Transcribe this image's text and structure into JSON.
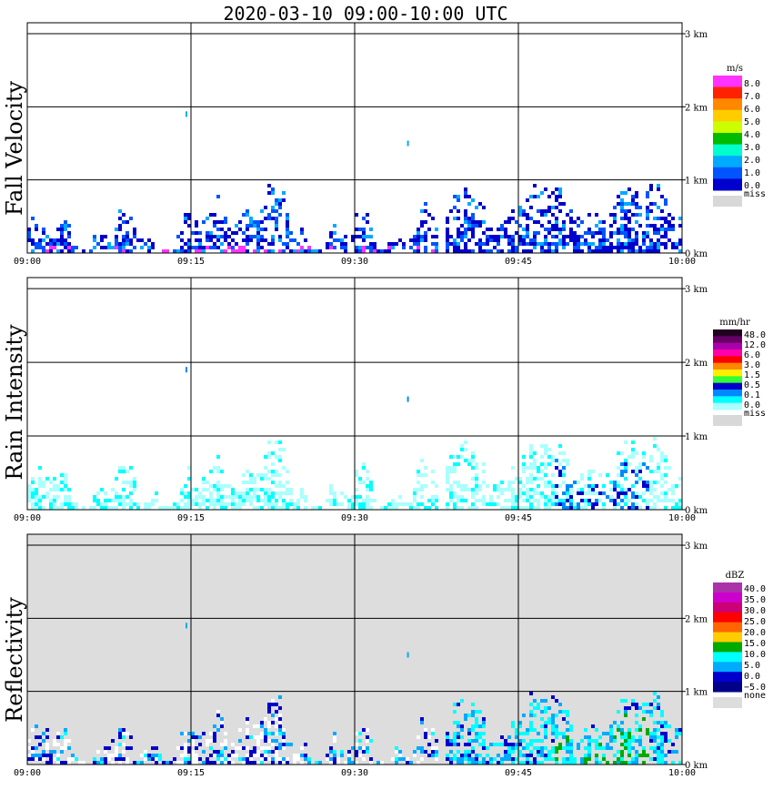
{
  "title": "2020-03-10   09:00-10:00 UTC",
  "chart_data": [
    {
      "type": "heatmap",
      "title": "Fall Velocity",
      "xlabel": "",
      "ylabel": "",
      "x_ticks": [
        "09:00",
        "09:15",
        "09:30",
        "09:45",
        "10:00"
      ],
      "y_ticks": [
        "0 km",
        "1 km",
        "2 km",
        "3 km"
      ],
      "xlim": [
        "09:00",
        "10:00"
      ],
      "ylim_km": [
        0,
        3
      ],
      "grid": true,
      "background": "#ffffff",
      "colorbar": {
        "unit": "m/s",
        "labels": [
          "8.0",
          "7.0",
          "6.0",
          "5.0",
          "4.0",
          "3.0",
          "2.0",
          "1.0",
          "0.0"
        ],
        "colors": [
          "#ff33ff",
          "#ff2200",
          "#ff8800",
          "#ffcc00",
          "#ccff00",
          "#00bb00",
          "#00ffcc",
          "#00aaff",
          "#0055ff",
          "#0000cc"
        ],
        "missing_label": "miss",
        "missing_color": "#d8d8d8"
      }
    },
    {
      "type": "heatmap",
      "title": "Rain Intensity",
      "xlabel": "",
      "ylabel": "",
      "x_ticks": [
        "09:00",
        "09:15",
        "09:30",
        "09:45",
        "10:00"
      ],
      "y_ticks": [
        "0 km",
        "1 km",
        "2 km",
        "3 km"
      ],
      "xlim": [
        "09:00",
        "10:00"
      ],
      "ylim_km": [
        0,
        3
      ],
      "grid": true,
      "background": "#ffffff",
      "colorbar": {
        "unit": "mm/hr",
        "labels": [
          "48.0",
          "12.0",
          "6.0",
          "3.0",
          "1.5",
          "0.5",
          "0.1",
          "0.0"
        ],
        "colors": [
          "#220022",
          "#660066",
          "#aa00aa",
          "#ff00aa",
          "#ff0000",
          "#ff8800",
          "#ffee00",
          "#33ff33",
          "#0000cc",
          "#0088ff",
          "#00ffff",
          "#aaffff"
        ],
        "missing_label": "miss",
        "missing_color": "#d8d8d8"
      }
    },
    {
      "type": "heatmap",
      "title": "Reflectivity",
      "xlabel": "",
      "ylabel": "",
      "x_ticks": [
        "09:00",
        "09:15",
        "09:30",
        "09:45",
        "10:00"
      ],
      "y_ticks": [
        "0 km",
        "1 km",
        "2 km",
        "3 km"
      ],
      "xlim": [
        "09:00",
        "10:00"
      ],
      "ylim_km": [
        0,
        3
      ],
      "grid": true,
      "background": "#dddddd",
      "colorbar": {
        "unit": "dBZ",
        "labels": [
          "40.0",
          "35.0",
          "30.0",
          "25.0",
          "20.0",
          "15.0",
          "10.0",
          "5.0",
          "0.0",
          "−5.0"
        ],
        "colors": [
          "#aa33aa",
          "#cc00cc",
          "#cc0077",
          "#ff0000",
          "#ff6600",
          "#ffcc00",
          "#00aa00",
          "#00ffff",
          "#00aaff",
          "#0000cc",
          "#000088"
        ],
        "missing_label": "none",
        "missing_color": "#dddddd"
      }
    }
  ]
}
